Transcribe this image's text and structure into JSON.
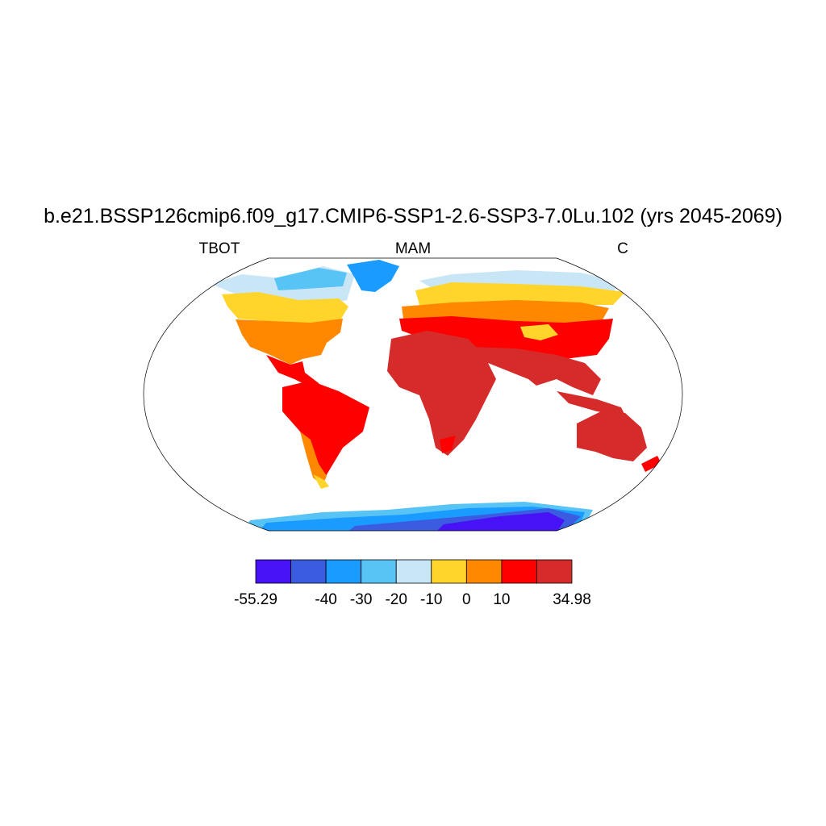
{
  "title": "b.e21.BSSP126cmip6.f09_g17.CMIP6-SSP1-2.6-SSP3-7.0Lu.102 (yrs 2045-2069)",
  "left_label": "TBOT",
  "center_label": "MAM",
  "right_label": "C",
  "colorbar": {
    "colors": [
      "#4712f5",
      "#3b5ce0",
      "#1a9bff",
      "#58c4f5",
      "#c9e6f7",
      "#ffd52b",
      "#ff8800",
      "#ff0000",
      "#d62b2b"
    ],
    "edges": [
      -55.29,
      null,
      -40,
      -30,
      -20,
      -10,
      0,
      10,
      null,
      34.98
    ]
  }
}
